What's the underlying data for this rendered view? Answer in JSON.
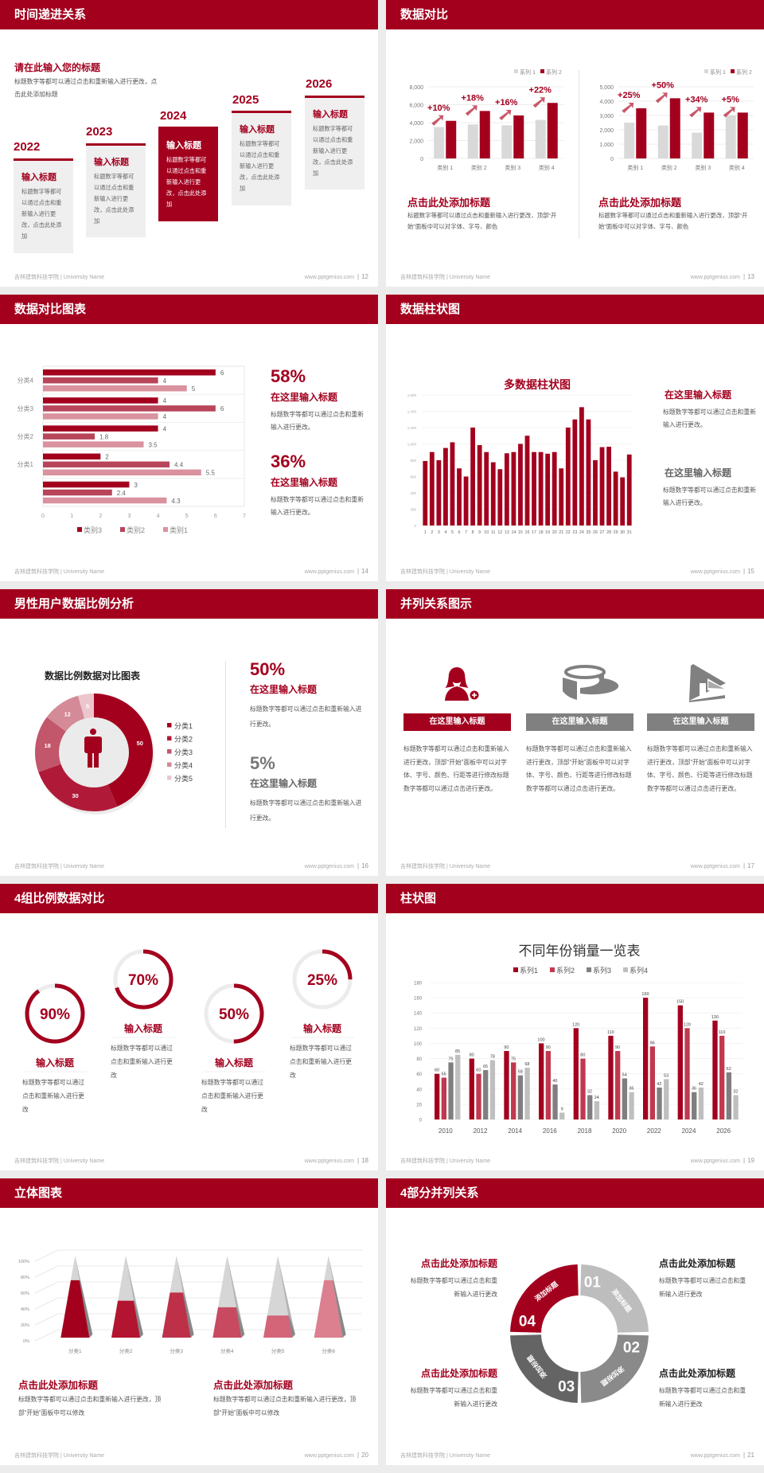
{
  "footer": {
    "left": "吉林建筑科技学院 | University Name",
    "right": "www.pptgenius.com"
  },
  "colors": {
    "primary": "#a3001e",
    "secondary": "#c0394f",
    "gray": "#7f7f7f",
    "light_gray": "#bfbfbf",
    "background": "#ececec"
  },
  "s12": {
    "title": "时间递进关系",
    "page": "12",
    "heading": "请在此输入您的标题",
    "desc": "标题数字等都可以通过点击和重新输入进行更改，点击此处添加标题",
    "steps": [
      {
        "year": "2022",
        "title": "输入标题",
        "text": "标题数字等都可以通过点击和重新输入进行更改，点击此处添加"
      },
      {
        "year": "2023",
        "title": "输入标题",
        "text": "标题数字等都可以通过点击和重新输入进行更改，点击此处添加"
      },
      {
        "year": "2024",
        "title": "输入标题",
        "text": "标题数字等都可以通过点击和重新输入进行更改，点击此处添加"
      },
      {
        "year": "2025",
        "title": "输入标题",
        "text": "标题数字等都可以通过点击和重新输入进行更改，点击此处添加"
      },
      {
        "year": "2026",
        "title": "输入标题",
        "text": "标题数字等都可以通过点击和重新输入进行更改，点击此处添加"
      }
    ]
  },
  "s13": {
    "title": "数据对比",
    "page": "13",
    "blocks": [
      {
        "heading": "点击此处添加标题",
        "text": "标题数字等都可以通过点击和重新输入进行更改，顶部“开始”面板中可以对字体、字号、颜色"
      },
      {
        "heading": "点击此处添加标题",
        "text": "标题数字等都可以通过点击和重新输入进行更改，顶部“开始”面板中可以对字体、字号、颜色"
      }
    ]
  },
  "s14": {
    "title": "数据对比图表",
    "page": "14",
    "blocks": [
      {
        "value": "58%",
        "heading": "在这里输入标题",
        "text": "标题数字等都可以通过点击和重新输入进行更改。"
      },
      {
        "value": "36%",
        "heading": "在这里输入标题",
        "text": "标题数字等都可以通过点击和重新输入进行更改。"
      }
    ]
  },
  "s15": {
    "title": "数据柱状图",
    "page": "15",
    "blocks": [
      {
        "heading": "在这里输入标题",
        "text": "标题数字等都可以通过点击和重新输入进行更改。"
      },
      {
        "heading": "在这里输入标题",
        "text": "标题数字等都可以通过点击和重新输入进行更改。"
      }
    ]
  },
  "s16": {
    "title": "男性用户数据比例分析",
    "page": "16",
    "blocks": [
      {
        "value": "50%",
        "heading": "在这里输入标题",
        "text": "标题数字等都可以通过点击和重新输入进行更改。"
      },
      {
        "value": "5%",
        "heading": "在这里输入标题",
        "text": "标题数字等都可以通过点击和重新输入进行更改。"
      }
    ]
  },
  "s17": {
    "title": "并列关系图示",
    "page": "17",
    "items": [
      {
        "icon": "female-user-add-icon",
        "heading": "在这里输入标题",
        "text": "标题数字等都可以通过点击和重新输入进行更改，顶部“开始”面板中可以对字体、字号、颜色、行距等进行修改标题数字等都可以通过点击进行更改。"
      },
      {
        "icon": "pie-3d-icon",
        "heading": "在这里输入标题",
        "text": "标题数字等都可以通过点击和重新输入进行更改，顶部“开始”面板中可以对字体、字号、颜色、行距等进行修改标题数字等都可以通过点击进行更改。"
      },
      {
        "icon": "store-icon",
        "heading": "在这里输入标题",
        "text": "标题数字等都可以通过点击和重新输入进行更改，顶部“开始”面板中可以对字体、字号、颜色、行距等进行修改标题数字等都可以通过点击进行更改。"
      }
    ]
  },
  "s18": {
    "title": "4组比例数据对比",
    "page": "18",
    "items": [
      {
        "value": 90,
        "label": "90%",
        "heading": "输入标题",
        "text": "标题数字等都可以通过点击和重新输入进行更改"
      },
      {
        "value": 70,
        "label": "70%",
        "heading": "输入标题",
        "text": "标题数字等都可以通过点击和重新输入进行更改"
      },
      {
        "value": 50,
        "label": "50%",
        "heading": "输入标题",
        "text": "标题数字等都可以通过点击和重新输入进行更改"
      },
      {
        "value": 25,
        "label": "25%",
        "heading": "输入标题",
        "text": "标题数字等都可以通过点击和重新输入进行更改"
      }
    ]
  },
  "s19": {
    "title": "柱状图",
    "page": "19"
  },
  "s20": {
    "title": "立体图表",
    "page": "20",
    "blocks": [
      {
        "heading": "点击此处添加标题",
        "text": "标题数字等都可以通过点击和重新输入进行更改，顶部“开始”面板中可以修改"
      },
      {
        "heading": "点击此处添加标题",
        "text": "标题数字等都可以通过点击和重新输入进行更改，顶部“开始”面板中可以修改"
      }
    ]
  },
  "s21": {
    "title": "4部分并列关系",
    "page": "21",
    "segments": [
      {
        "number": "01",
        "label": "添加标题"
      },
      {
        "number": "02",
        "label": "添加标题"
      },
      {
        "number": "03",
        "label": "添加标题"
      },
      {
        "number": "04",
        "label": "添加标题"
      }
    ],
    "blocks": [
      {
        "heading": "点击此处添加标题",
        "text": "标题数字等都可以通过点击和重新输入进行更改"
      },
      {
        "heading": "点击此处添加标题",
        "text": "标题数字等都可以通过点击和重新输入进行更改"
      },
      {
        "heading": "点击此处添加标题",
        "text": "标题数字等都可以通过点击和重新输入进行更改"
      },
      {
        "heading": "点击此处添加标题",
        "text": "标题数字等都可以通过点击和重新输入进行更改"
      }
    ]
  },
  "chart_data": [
    {
      "id": "s13a",
      "type": "bar",
      "categories": [
        "类别 1",
        "类别 2",
        "类别 3",
        "类别 4"
      ],
      "series": [
        {
          "name": "系列 1",
          "values": [
            3500,
            3800,
            3700,
            4300
          ],
          "color": "#d9d9d9"
        },
        {
          "name": "系列 2",
          "values": [
            4200,
            5300,
            4800,
            6200
          ],
          "color": "#a3001e"
        }
      ],
      "annotations": [
        "+10%",
        "+18%",
        "+16%",
        "+22%"
      ],
      "ylim": [
        0,
        8000
      ],
      "yticks": [
        "0",
        "2,000",
        "4,000",
        "6,000",
        "8,000"
      ],
      "grid": true,
      "legend": "top-right"
    },
    {
      "id": "s13b",
      "type": "bar",
      "categories": [
        "类别 1",
        "类别 2",
        "类别 3",
        "类别 4"
      ],
      "series": [
        {
          "name": "系列 1",
          "values": [
            2500,
            2300,
            1800,
            3000
          ],
          "color": "#d9d9d9"
        },
        {
          "name": "系列 2",
          "values": [
            3500,
            4200,
            3200,
            3200
          ],
          "color": "#a3001e"
        }
      ],
      "annotations": [
        "+25%",
        "+50%",
        "+34%",
        "+5%"
      ],
      "ylim": [
        0,
        5000
      ],
      "yticks": [
        "0",
        "1,000",
        "2,000",
        "3,000",
        "4,000",
        "5,000"
      ],
      "grid": true,
      "legend": "top-right"
    },
    {
      "id": "s14",
      "type": "bar",
      "orientation": "horizontal",
      "categories": [
        "分类4",
        "分类3",
        "分类2",
        "分类1",
        ""
      ],
      "series": [
        {
          "name": "类别3",
          "values": [
            6,
            4,
            4,
            2,
            3
          ],
          "color": "#a3001e"
        },
        {
          "name": "类别2",
          "values": [
            4,
            6,
            1.8,
            4.4,
            2.4
          ],
          "color": "#b8455a"
        },
        {
          "name": "类别1",
          "values": [
            5,
            4,
            3.5,
            5.5,
            4.3
          ],
          "color": "#d9929e"
        }
      ],
      "xlim": [
        0,
        7
      ],
      "xticks": [
        "0",
        "1",
        "2",
        "3",
        "4",
        "5",
        "6",
        "7"
      ],
      "legend": "bottom"
    },
    {
      "id": "s15",
      "type": "bar",
      "title": "多数据柱状图",
      "categories": [
        "1",
        "2",
        "3",
        "4",
        "5",
        "6",
        "7",
        "8",
        "9",
        "10",
        "11",
        "12",
        "13",
        "14",
        "15",
        "16",
        "17",
        "18",
        "19",
        "20",
        "21",
        "22",
        "23",
        "24",
        "25",
        "26",
        "27",
        "28",
        "29",
        "30",
        "31"
      ],
      "values": [
        790,
        900,
        800,
        950,
        1020,
        700,
        600,
        1200,
        985,
        900,
        775,
        690,
        885,
        900,
        1000,
        1100,
        900,
        900,
        880,
        900,
        700,
        1200,
        1300,
        1450,
        1300,
        800,
        960,
        965,
        660,
        590,
        870
      ],
      "ylim": [
        0,
        1600
      ],
      "yticks": [
        "0",
        "200",
        "400",
        "600",
        "800",
        "1,000",
        "1,200",
        "1,400",
        "1,600"
      ],
      "grid": true
    },
    {
      "id": "s16",
      "type": "pie",
      "title": "数据比例数据对比图表",
      "categories": [
        "分类1",
        "分类2",
        "分类3",
        "分类4",
        "分类5"
      ],
      "values": [
        50,
        30,
        18,
        12,
        5
      ],
      "labels": [
        "50",
        "30",
        "18",
        "12",
        "5"
      ],
      "colors": [
        "#a3001e",
        "#b01a38",
        "#c2566a",
        "#d48a97",
        "#ecc6cc"
      ],
      "legend": "right"
    },
    {
      "id": "s19",
      "type": "bar",
      "title": "不同年份销量一览表",
      "categories": [
        "2010",
        "2012",
        "2014",
        "2016",
        "2018",
        "2020",
        "2022",
        "2024",
        "2026"
      ],
      "series": [
        {
          "name": "系列1",
          "values": [
            60,
            80,
            90,
            100,
            120,
            110,
            160,
            150,
            130
          ],
          "color": "#a3001e"
        },
        {
          "name": "系列2",
          "values": [
            55,
            60,
            75,
            90,
            80,
            90,
            96,
            120,
            110
          ],
          "color": "#c0394f"
        },
        {
          "name": "系列3",
          "values": [
            75,
            65,
            58,
            46,
            32,
            54,
            42,
            36,
            62
          ],
          "color": "#7f7f7f"
        },
        {
          "name": "系列4",
          "values": [
            85,
            78,
            68,
            9,
            24,
            36,
            53,
            42,
            32
          ],
          "color": "#bfbfbf"
        }
      ],
      "ylim": [
        0,
        180
      ],
      "yticks": [
        "0",
        "20",
        "40",
        "60",
        "80",
        "100",
        "120",
        "140",
        "160",
        "180"
      ],
      "grid": true,
      "legend": "top"
    },
    {
      "id": "s20",
      "type": "bar",
      "style": "3d-pyramid",
      "categories": [
        "分类1",
        "分类2",
        "分类3",
        "分类4",
        "分类5",
        "分类6"
      ],
      "values": [
        70,
        45,
        55,
        37,
        27,
        70
      ],
      "colors": [
        "#a3001e",
        "#b3142f",
        "#be3048",
        "#c84a60",
        "#d46478",
        "#dc7f8f"
      ],
      "ylim": [
        0,
        100
      ],
      "yticks": [
        "0%",
        "20%",
        "40%",
        "60%",
        "80%",
        "100%"
      ],
      "grid": true
    }
  ]
}
